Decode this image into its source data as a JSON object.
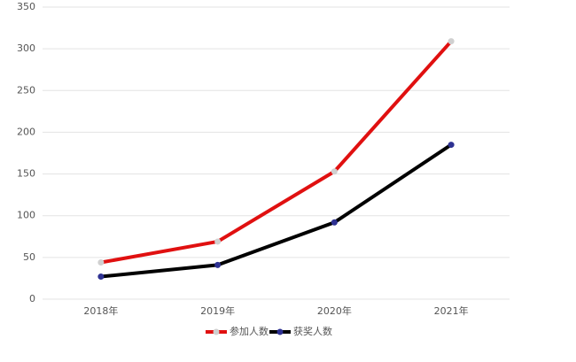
{
  "chart_data": {
    "type": "line",
    "categories": [
      "2018年",
      "2019年",
      "2020年",
      "2021年"
    ],
    "series": [
      {
        "name": "参加人数",
        "color": "#e01010",
        "marker_color": "#d0d0d0",
        "values": [
          44,
          69,
          153,
          309
        ]
      },
      {
        "name": "获奖人数",
        "color": "#000000",
        "marker_color": "#2e3192",
        "values": [
          27,
          41,
          92,
          185
        ]
      }
    ],
    "ylim": [
      0,
      350
    ],
    "yticks": [
      0,
      50,
      100,
      150,
      200,
      250,
      300,
      350
    ],
    "grid": true,
    "legend": "bottom"
  }
}
